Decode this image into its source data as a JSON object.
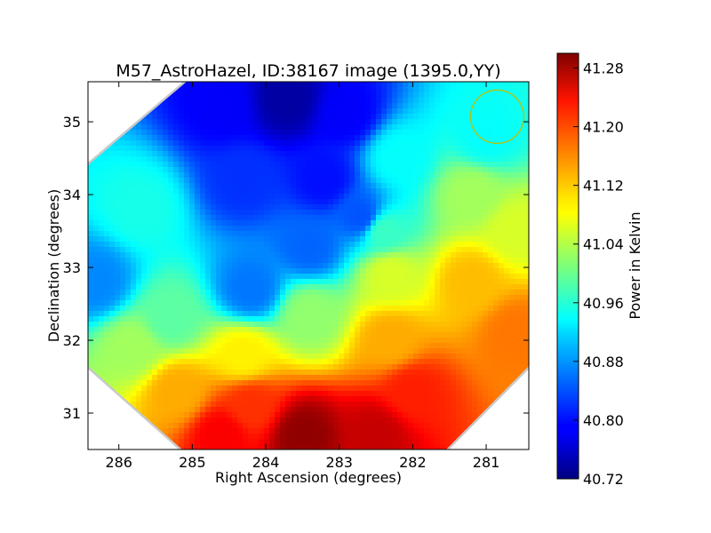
{
  "chart_data": {
    "type": "heatmap",
    "title": "M57_AstroHazel, ID:38167 image (1395.0,YY)",
    "xlabel": "Right Ascension (degrees)",
    "ylabel": "Declination (degrees)",
    "x_axis_reversed": true,
    "xlim": [
      286.42,
      280.42
    ],
    "ylim": [
      30.5,
      35.55
    ],
    "x_ticks": [
      286,
      285,
      284,
      283,
      282,
      281
    ],
    "y_ticks": [
      31,
      32,
      33,
      34,
      35
    ],
    "grid": false,
    "footprint": "octagon",
    "beam_circle": {
      "ra": 280.85,
      "dec": 35.07,
      "radius_deg": 0.37,
      "color": "#bfbf00"
    },
    "colormap": "jet",
    "colorbar": {
      "label": "Power in Kelvin",
      "min": 40.72,
      "max": 41.3,
      "ticks": [
        "41.28",
        "41.20",
        "41.12",
        "41.04",
        "40.96",
        "40.88",
        "40.80",
        "40.72"
      ]
    },
    "sample_points": [
      {
        "ra": 283.7,
        "dec": 35.3,
        "value": 40.74
      },
      {
        "ra": 284.6,
        "dec": 35.2,
        "value": 40.79
      },
      {
        "ra": 282.9,
        "dec": 35.1,
        "value": 40.79
      },
      {
        "ra": 283.2,
        "dec": 34.2,
        "value": 40.8
      },
      {
        "ra": 284.3,
        "dec": 34.2,
        "value": 40.82
      },
      {
        "ra": 282.7,
        "dec": 33.7,
        "value": 40.84
      },
      {
        "ra": 283.4,
        "dec": 33.3,
        "value": 40.85
      },
      {
        "ra": 284.2,
        "dec": 32.7,
        "value": 40.86
      },
      {
        "ra": 286.3,
        "dec": 32.8,
        "value": 40.87
      },
      {
        "ra": 281.0,
        "dec": 34.8,
        "value": 40.94
      },
      {
        "ra": 285.7,
        "dec": 33.8,
        "value": 40.95
      },
      {
        "ra": 285.3,
        "dec": 32.3,
        "value": 40.99
      },
      {
        "ra": 282.4,
        "dec": 33.5,
        "value": 40.97
      },
      {
        "ra": 282.2,
        "dec": 34.5,
        "value": 40.94
      },
      {
        "ra": 281.2,
        "dec": 34.0,
        "value": 41.03
      },
      {
        "ra": 280.6,
        "dec": 33.5,
        "value": 41.06
      },
      {
        "ra": 282.3,
        "dec": 32.9,
        "value": 41.06
      },
      {
        "ra": 283.4,
        "dec": 32.35,
        "value": 41.02
      },
      {
        "ra": 285.8,
        "dec": 31.9,
        "value": 41.03
      },
      {
        "ra": 284.3,
        "dec": 31.8,
        "value": 41.09
      },
      {
        "ra": 281.2,
        "dec": 32.8,
        "value": 41.12
      },
      {
        "ra": 282.3,
        "dec": 32.0,
        "value": 41.13
      },
      {
        "ra": 280.6,
        "dec": 32.1,
        "value": 41.16
      },
      {
        "ra": 285.2,
        "dec": 31.3,
        "value": 41.13
      },
      {
        "ra": 284.2,
        "dec": 31.1,
        "value": 41.2
      },
      {
        "ra": 282.0,
        "dec": 31.3,
        "value": 41.21
      },
      {
        "ra": 283.5,
        "dec": 30.7,
        "value": 41.29
      },
      {
        "ra": 282.5,
        "dec": 30.7,
        "value": 41.26
      },
      {
        "ra": 284.6,
        "dec": 30.7,
        "value": 41.23
      }
    ]
  }
}
